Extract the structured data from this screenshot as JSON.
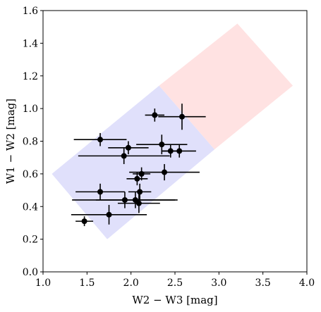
{
  "chart_data": {
    "type": "scatter",
    "xlabel": "W2 − W3 [mag]",
    "ylabel": "W1 − W2 [mag]",
    "xlim": [
      1.0,
      4.0
    ],
    "ylim": [
      0.0,
      1.6
    ],
    "x_ticks": [
      "1.0",
      "1.5",
      "2.0",
      "2.5",
      "3.0",
      "3.5",
      "4.0"
    ],
    "y_ticks": [
      "0.0",
      "0.2",
      "0.4",
      "0.6",
      "0.8",
      "1.0",
      "1.2",
      "1.4",
      "1.6"
    ],
    "grid": false,
    "legend": "none",
    "regions": [
      {
        "color": "#e0e0fb",
        "polygon": [
          [
            1.1,
            0.6
          ],
          [
            1.73,
            0.2
          ],
          [
            2.95,
            0.75
          ],
          [
            2.32,
            1.14
          ]
        ]
      },
      {
        "color": "#ffe2e2",
        "polygon": [
          [
            2.32,
            1.14
          ],
          [
            2.95,
            0.75
          ],
          [
            3.84,
            1.14
          ],
          [
            3.21,
            1.52
          ]
        ]
      }
    ],
    "points": [
      {
        "x": 1.47,
        "y": 0.31,
        "xerr": 0.1,
        "yerr": 0.03
      },
      {
        "x": 1.75,
        "y": 0.35,
        "xerr": 0.43,
        "yerr": 0.06
      },
      {
        "x": 1.65,
        "y": 0.49,
        "xerr": 0.28,
        "yerr": 0.05
      },
      {
        "x": 1.93,
        "y": 0.44,
        "xerr": 0.6,
        "yerr": 0.05
      },
      {
        "x": 2.05,
        "y": 0.44,
        "xerr": 0.45,
        "yerr": 0.05
      },
      {
        "x": 2.09,
        "y": 0.42,
        "xerr": 0.24,
        "yerr": 0.06
      },
      {
        "x": 2.1,
        "y": 0.49,
        "xerr": 0.13,
        "yerr": 0.05
      },
      {
        "x": 2.07,
        "y": 0.57,
        "xerr": 0.12,
        "yerr": 0.04
      },
      {
        "x": 2.12,
        "y": 0.6,
        "xerr": 0.1,
        "yerr": 0.04
      },
      {
        "x": 2.38,
        "y": 0.61,
        "xerr": 0.4,
        "yerr": 0.05
      },
      {
        "x": 1.92,
        "y": 0.71,
        "xerr": 0.52,
        "yerr": 0.05
      },
      {
        "x": 1.97,
        "y": 0.76,
        "xerr": 0.23,
        "yerr": 0.04
      },
      {
        "x": 1.65,
        "y": 0.81,
        "xerr": 0.3,
        "yerr": 0.04
      },
      {
        "x": 2.35,
        "y": 0.78,
        "xerr": 0.29,
        "yerr": 0.06
      },
      {
        "x": 2.45,
        "y": 0.74,
        "xerr": 0.1,
        "yerr": 0.04
      },
      {
        "x": 2.55,
        "y": 0.74,
        "xerr": 0.19,
        "yerr": 0.04
      },
      {
        "x": 2.27,
        "y": 0.96,
        "xerr": 0.11,
        "yerr": 0.04
      },
      {
        "x": 2.58,
        "y": 0.95,
        "xerr": 0.27,
        "yerr": 0.08
      }
    ]
  }
}
